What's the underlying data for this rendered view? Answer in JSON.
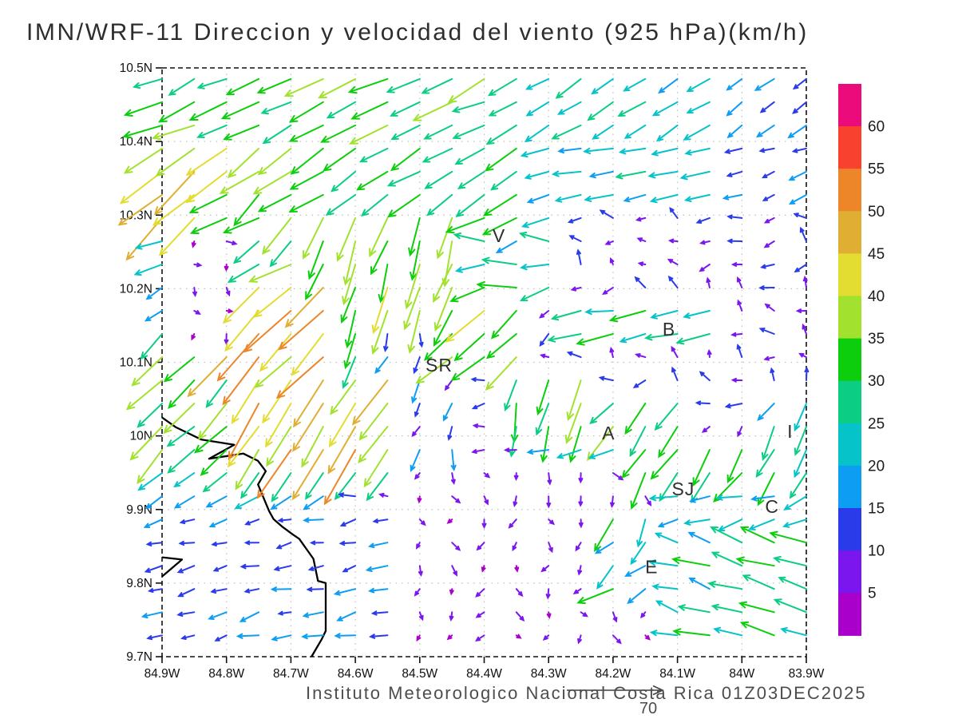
{
  "header": {
    "title": "IMN/WRF-11 Direccion y velocidad del viento (925 hPa)(km/h)"
  },
  "footer": {
    "credit": "Instituto Meteorologico Nacional Costa Rica 01Z03DEC2025"
  },
  "chart_data": {
    "type": "vector_field",
    "title": "IMN/WRF-11 Direccion y velocidad del viento (925 hPa)(km/h)",
    "model": "IMN/WRF-11",
    "variable": "Direccion y velocidad del viento",
    "level": "925 hPa",
    "units": "km/h",
    "valid_time": "01Z03DEC2025",
    "grid_on": true,
    "axes": {
      "lon_min_w": 83.9,
      "lon_max_w": 84.9,
      "lat_min_n": 9.7,
      "lat_max_n": 10.5,
      "x_tick_labels": [
        "84.9W",
        "84.8W",
        "84.7W",
        "84.6W",
        "84.5W",
        "84.4W",
        "84.3W",
        "84.2W",
        "84.1W",
        "84W",
        "83.9W"
      ],
      "y_tick_labels": [
        "10.5N",
        "10.4N",
        "10.3N",
        "10.2N",
        "10.1N",
        "10N",
        "9.9N",
        "9.8N",
        "9.7N"
      ]
    },
    "colorbar": {
      "units": "km/h",
      "tick_labels_top_to_bottom": [
        "60",
        "55",
        "50",
        "45",
        "40",
        "35",
        "30",
        "25",
        "20",
        "15",
        "10",
        "5"
      ],
      "colors_bottom_to_top": [
        "#aa00cc",
        "#7b16ee",
        "#2a3bea",
        "#0d9df2",
        "#06c3c9",
        "#0bcd84",
        "#0cce0c",
        "#a2e22f",
        "#e3dc31",
        "#e0ae33",
        "#ed8629",
        "#f8412f",
        "#ec0b7b"
      ]
    },
    "reference_vector": {
      "speed_label": "70"
    },
    "stations": [
      {
        "id": "V",
        "lon_w": 84.377,
        "lat_n": 10.272
      },
      {
        "id": "B",
        "lon_w": 84.113,
        "lat_n": 10.145
      },
      {
        "id": "SR",
        "lon_w": 84.47,
        "lat_n": 10.096
      },
      {
        "id": "A",
        "lon_w": 84.207,
        "lat_n": 10.004
      },
      {
        "id": "I",
        "lon_w": 83.925,
        "lat_n": 10.006
      },
      {
        "id": "SJ",
        "lon_w": 84.091,
        "lat_n": 9.928
      },
      {
        "id": "C",
        "lon_w": 83.953,
        "lat_n": 9.904
      },
      {
        "id": "E",
        "lon_w": 84.14,
        "lat_n": 9.822
      }
    ],
    "coastline": [
      [
        84.9,
        10.025
      ],
      [
        84.879,
        10.012
      ],
      [
        84.839,
        9.995
      ],
      [
        84.788,
        9.988
      ],
      [
        84.827,
        9.969
      ],
      [
        84.774,
        9.976
      ],
      [
        84.751,
        9.966
      ],
      [
        84.739,
        9.952
      ],
      [
        84.751,
        9.934
      ],
      [
        84.734,
        9.898
      ],
      [
        84.727,
        9.887
      ],
      [
        84.714,
        9.877
      ],
      [
        84.697,
        9.866
      ],
      [
        84.687,
        9.86
      ],
      [
        84.665,
        9.833
      ],
      [
        84.658,
        9.803
      ],
      [
        84.646,
        9.8
      ],
      [
        84.646,
        9.735
      ],
      [
        84.652,
        9.724
      ],
      [
        84.668,
        9.7
      ]
    ],
    "peninsula": [
      [
        84.9,
        9.835
      ],
      [
        84.869,
        9.832
      ],
      [
        84.9,
        9.809
      ]
    ],
    "wind_field": {
      "grid": {
        "lon_start_w": 84.9,
        "lon_step": 0.05,
        "n_cols": 21,
        "lat_start_n": 10.485,
        "lat_step": 0.0315,
        "n_rows": 25
      },
      "note": "direction = screen-pointing angle, deg CCW from east; speed in km/h; regions approximate the plotted field",
      "default": {
        "dir": 205,
        "jit": 45,
        "spd": 10,
        "spr": 4
      },
      "regions": [
        {
          "name": "left-edge-orange",
          "lon": [
            84.905,
            84.815
          ],
          "lat": [
            10.27,
            10.37
          ],
          "dir": 222,
          "jit": 8,
          "spd": 46,
          "spr": 4
        },
        {
          "name": "calm-strip-west",
          "lon": [
            84.875,
            84.79
          ],
          "lat": [
            10.12,
            10.28
          ],
          "dir": 300,
          "jit": 55,
          "spd": 6,
          "spr": 2.5
        },
        {
          "name": "left-edge-cyan",
          "lon": [
            84.905,
            84.875
          ],
          "lat": [
            10.16,
            10.27
          ],
          "dir": 205,
          "jit": 14,
          "spd": 19,
          "spr": 6
        },
        {
          "name": "jet-sw-upper",
          "lon": [
            84.82,
            84.62
          ],
          "lat": [
            10.09,
            10.23
          ],
          "dir": 225,
          "jit": 8,
          "spd": 47,
          "spr": 8
        },
        {
          "name": "jet-sw-lower",
          "lon": [
            84.75,
            84.55
          ],
          "lat": [
            9.97,
            10.09
          ],
          "dir": 238,
          "jit": 8,
          "spd": 45,
          "spr": 10
        },
        {
          "name": "left-green-sw",
          "lon": [
            84.905,
            84.8
          ],
          "lat": [
            9.96,
            10.16
          ],
          "dir": 224,
          "jit": 10,
          "spd": 33,
          "spr": 6
        },
        {
          "name": "top-band-left",
          "lon": [
            84.905,
            84.35
          ],
          "lat": [
            10.42,
            10.52
          ],
          "dir": 205,
          "jit": 9,
          "spd": 31,
          "spr": 6
        },
        {
          "name": "top-band-mid",
          "lon": [
            84.35,
            84.02
          ],
          "lat": [
            10.42,
            10.52
          ],
          "dir": 210,
          "jit": 8,
          "spd": 23,
          "spr": 4
        },
        {
          "name": "top-band-right",
          "lon": [
            84.02,
            83.88
          ],
          "lat": [
            10.42,
            10.52
          ],
          "dir": 214,
          "jit": 8,
          "spd": 16,
          "spr": 3
        },
        {
          "name": "upper-left-yellow",
          "lon": [
            84.905,
            84.7
          ],
          "lat": [
            10.33,
            10.42
          ],
          "dir": 217,
          "jit": 8,
          "spd": 39,
          "spr": 5
        },
        {
          "name": "upper-mid-green",
          "lon": [
            84.7,
            84.33
          ],
          "lat": [
            10.3,
            10.42
          ],
          "dir": 212,
          "jit": 8,
          "spd": 30,
          "spr": 5
        },
        {
          "name": "upper-right-cyan",
          "lon": [
            84.33,
            84.03
          ],
          "lat": [
            10.3,
            10.42
          ],
          "dir": 193,
          "jit": 8,
          "spd": 22,
          "spr": 4
        },
        {
          "name": "upper-far-right-blue",
          "lon": [
            84.03,
            83.88
          ],
          "lat": [
            10.3,
            10.42
          ],
          "dir": 200,
          "jit": 10,
          "spd": 13,
          "spr": 3
        },
        {
          "name": "central-south-band",
          "lon": [
            84.68,
            84.42
          ],
          "lat": [
            10.17,
            10.3
          ],
          "dir": 252,
          "jit": 10,
          "spd": 36,
          "spr": 7
        },
        {
          "name": "west-upper-mix",
          "lon": [
            84.83,
            84.64
          ],
          "lat": [
            10.22,
            10.34
          ],
          "dir": 220,
          "jit": 18,
          "spd": 33,
          "spr": 10
        },
        {
          "name": "v-area",
          "lon": [
            84.42,
            84.26
          ],
          "lat": [
            10.2,
            10.3
          ],
          "dir": 187,
          "jit": 28,
          "spd": 27,
          "spr": 8
        },
        {
          "name": "center-sw-yellowgreen",
          "lon": [
            84.47,
            84.33
          ],
          "lat": [
            10.08,
            10.2
          ],
          "dir": 222,
          "jit": 9,
          "spd": 36,
          "spr": 6
        },
        {
          "name": "center-south-green",
          "lon": [
            84.37,
            84.25
          ],
          "lat": [
            9.99,
            10.08
          ],
          "dir": 258,
          "jit": 10,
          "spd": 31,
          "spr": 6
        },
        {
          "name": "sr-weak",
          "lon": [
            84.56,
            84.42
          ],
          "lat": [
            9.95,
            10.17
          ],
          "dir": 255,
          "jit": 25,
          "spd": 14,
          "spr": 6
        },
        {
          "name": "mid-col-green",
          "lon": [
            84.62,
            84.56
          ],
          "lat": [
            9.95,
            10.17
          ],
          "dir": 253,
          "jit": 10,
          "spd": 28,
          "spr": 7
        },
        {
          "name": "b-row-green",
          "lon": [
            84.25,
            84.03
          ],
          "lat": [
            10.12,
            10.19
          ],
          "dir": 188,
          "jit": 12,
          "spd": 27,
          "spr": 5
        },
        {
          "name": "right-center-calm",
          "lon": [
            84.28,
            83.88
          ],
          "lat": [
            10.06,
            10.32
          ],
          "dir": 150,
          "jit": 65,
          "spd": 9,
          "spr": 4
        },
        {
          "name": "a-sj-green-1",
          "lon": [
            84.26,
            84.1
          ],
          "lat": [
            10.01,
            10.12
          ],
          "dir": 232,
          "jit": 12,
          "spd": 30,
          "spr": 6
        },
        {
          "name": "a-sj-green-2",
          "lon": [
            84.17,
            83.95
          ],
          "lat": [
            9.92,
            10.01
          ],
          "dir": 237,
          "jit": 12,
          "spd": 29,
          "spr": 6
        },
        {
          "name": "a-row-teal",
          "lon": [
            84.34,
            84.17
          ],
          "lat": [
            9.95,
            10.06
          ],
          "dir": 190,
          "jit": 10,
          "spd": 21,
          "spr": 4
        },
        {
          "name": "right-edge-green",
          "lon": [
            83.98,
            83.88
          ],
          "lat": [
            9.93,
            10.1
          ],
          "dir": 243,
          "jit": 18,
          "spd": 24,
          "spr": 7
        },
        {
          "name": "sj-c-teal",
          "lon": [
            84.13,
            83.88
          ],
          "lat": [
            9.86,
            9.95
          ],
          "dir": 197,
          "jit": 16,
          "spd": 20,
          "spr": 6
        },
        {
          "name": "bottom-right-upleft",
          "lon": [
            84.13,
            83.88
          ],
          "lat": [
            9.69,
            9.86
          ],
          "dir": 163,
          "jit": 12,
          "spd": 26,
          "spr": 7
        },
        {
          "name": "e-area",
          "lon": [
            84.24,
            84.09
          ],
          "lat": [
            9.79,
            9.91
          ],
          "dir": 228,
          "jit": 28,
          "spd": 24,
          "spr": 9
        },
        {
          "name": "coast-green-row",
          "lon": [
            84.76,
            84.55
          ],
          "lat": [
            9.93,
            10.0
          ],
          "dir": 226,
          "jit": 10,
          "spd": 29,
          "spr": 6
        },
        {
          "name": "bl-cyan-row",
          "lon": [
            84.905,
            84.64
          ],
          "lat": [
            9.9,
            9.97
          ],
          "dir": 212,
          "jit": 10,
          "spd": 21,
          "spr": 5
        },
        {
          "name": "bottom-center-calm",
          "lon": [
            84.52,
            84.11
          ],
          "lat": [
            9.69,
            9.97
          ],
          "dir": 270,
          "jit": 60,
          "spd": 7,
          "spr": 3
        },
        {
          "name": "bottom-left-blue",
          "lon": [
            84.905,
            84.52
          ],
          "lat": [
            9.69,
            9.9
          ],
          "dir": 194,
          "jit": 14,
          "spd": 14,
          "spr": 4
        }
      ]
    }
  }
}
